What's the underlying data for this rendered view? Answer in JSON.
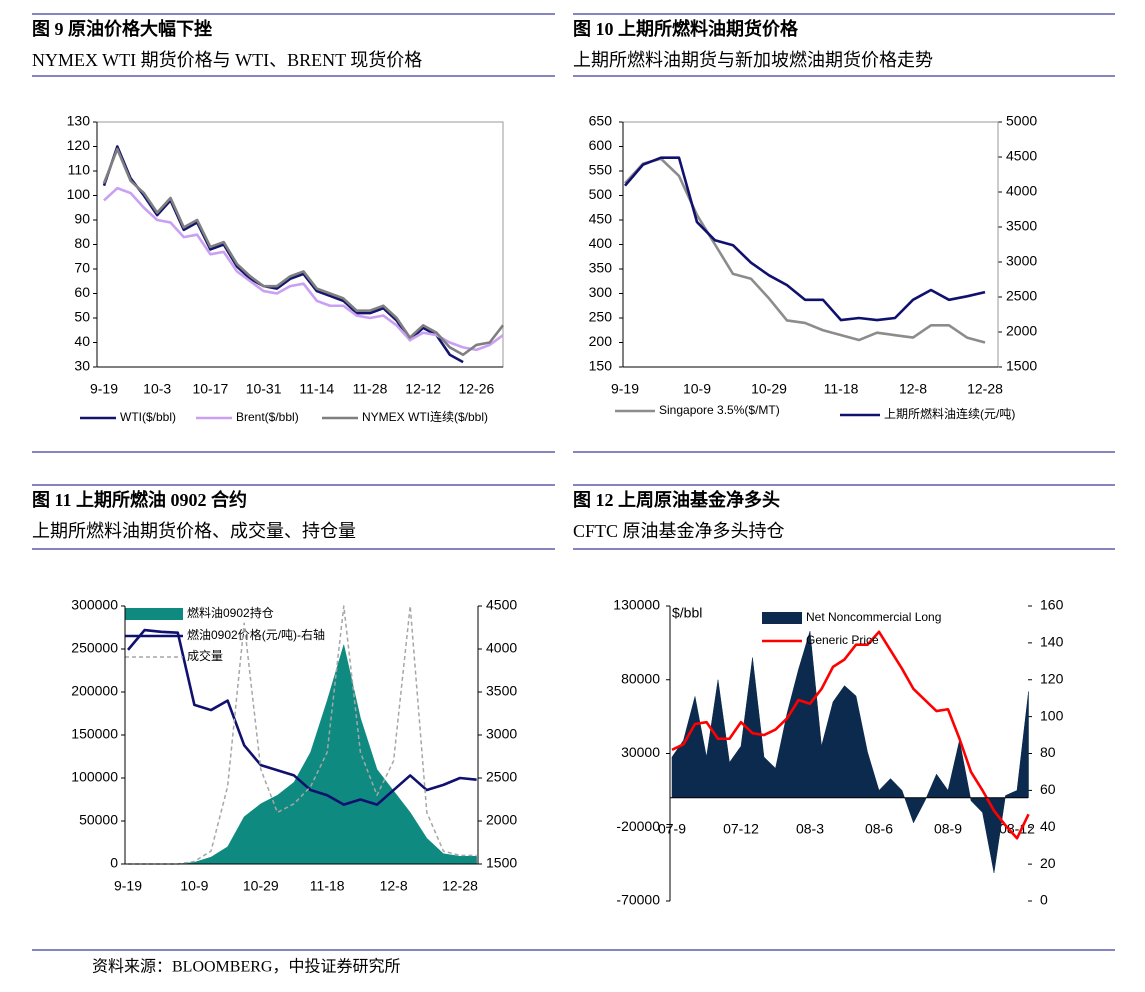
{
  "chart_data": [
    {
      "type": "line",
      "title": "图 9 原油价格大幅下挫",
      "subtitle": "NYMEX WTI 期货价格与 WTI、BRENT 现货价格",
      "categories": [
        "9-19",
        null,
        null,
        null,
        "10-3",
        null,
        null,
        null,
        "10-17",
        null,
        null,
        null,
        "10-31",
        null,
        null,
        null,
        "11-14",
        null,
        null,
        null,
        "11-28",
        null,
        null,
        null,
        "12-12",
        null,
        null,
        null,
        "12-26",
        null,
        null
      ],
      "ylim": [
        30,
        130
      ],
      "yticks": [
        30,
        40,
        50,
        60,
        70,
        80,
        90,
        100,
        110,
        120,
        130
      ],
      "series": [
        {
          "name": "WTI($/bbl)",
          "color": "#14146e",
          "values": [
            104,
            120,
            107,
            100,
            92,
            98,
            86,
            89,
            78,
            80,
            71,
            66,
            63,
            62,
            66,
            68,
            61,
            59,
            57,
            52,
            52,
            54,
            49,
            41,
            46,
            43,
            35,
            32,
            null,
            null,
            null
          ]
        },
        {
          "name": "Brent($/bbl)",
          "color": "#c9a0f2",
          "values": [
            98,
            103,
            101,
            95,
            90,
            89,
            83,
            84,
            76,
            77,
            69,
            65,
            61,
            60,
            63,
            64,
            57,
            55,
            55,
            51,
            50,
            51,
            47,
            41,
            44,
            43,
            40,
            38,
            37,
            39,
            43
          ]
        },
        {
          "name": "NYMEX WTI连续($/bbl)",
          "color": "#7f7f7f",
          "values": [
            105,
            119,
            106,
            101,
            93,
            99,
            87,
            90,
            79,
            81,
            72,
            67,
            63,
            63,
            67,
            69,
            62,
            60,
            58,
            53,
            53,
            55,
            50,
            42,
            47,
            44,
            38,
            35,
            39,
            40,
            47
          ]
        }
      ]
    },
    {
      "type": "line",
      "title": "图 10 上期所燃料油期货价格",
      "subtitle": "上期所燃料油期货与新加坡燃油期货价格走势",
      "categories": [
        "9-19",
        null,
        null,
        null,
        "10-9",
        null,
        null,
        null,
        "10-29",
        null,
        null,
        null,
        "11-18",
        null,
        null,
        null,
        "12-8",
        null,
        null,
        null,
        "12-28"
      ],
      "ylim": [
        150,
        650
      ],
      "yticks": [
        150,
        200,
        250,
        300,
        350,
        400,
        450,
        500,
        550,
        600,
        650
      ],
      "y2lim": [
        1500,
        5000
      ],
      "y2ticks": [
        1500,
        2000,
        2500,
        3000,
        3500,
        4000,
        4500,
        5000
      ],
      "series": [
        {
          "name": "Singapore 3.5%($/MT)",
          "color": "#8c8c8c",
          "values": [
            525,
            565,
            575,
            540,
            460,
            400,
            340,
            330,
            290,
            245,
            240,
            225,
            215,
            205,
            220,
            215,
            210,
            235,
            235,
            210,
            200
          ]
        },
        {
          "name": "上期所燃料油连续(元/吨)",
          "color": "#10106e",
          "axis": "y2",
          "values": [
            4090,
            4390,
            4490,
            4490,
            3570,
            3310,
            3240,
            2990,
            2810,
            2670,
            2460,
            2460,
            2170,
            2200,
            2170,
            2200,
            2460,
            2600,
            2460,
            2510,
            2570
          ]
        }
      ]
    },
    {
      "type": "combo",
      "title": "图 11 上期所燃油 0902 合约",
      "subtitle": "上期所燃料油期货价格、成交量、持仓量",
      "categories": [
        "9-19",
        null,
        null,
        null,
        "10-9",
        null,
        null,
        null,
        "10-29",
        null,
        null,
        null,
        "11-18",
        null,
        null,
        null,
        "12-8",
        null,
        null,
        null,
        "12-28",
        null
      ],
      "ylim": [
        0,
        300000
      ],
      "yticks": [
        0,
        50000,
        100000,
        150000,
        200000,
        250000,
        300000
      ],
      "y2lim": [
        1500,
        4500
      ],
      "y2ticks": [
        1500,
        2000,
        2500,
        3000,
        3500,
        4000,
        4500
      ],
      "series": [
        {
          "name": "燃料油0902持仓",
          "color": "#0f8a80",
          "type": "area",
          "values": [
            0,
            0,
            0,
            0,
            2000,
            8000,
            20000,
            55000,
            70000,
            80000,
            95000,
            130000,
            190000,
            255000,
            170000,
            110000,
            85000,
            60000,
            30000,
            12000,
            9000,
            9000
          ]
        },
        {
          "name": "燃油0902价格(元/吨)-右轴",
          "color": "#10106e",
          "type": "line",
          "axis": "y2",
          "values": [
            3990,
            4220,
            4200,
            4190,
            3350,
            3290,
            3400,
            2880,
            2650,
            2590,
            2530,
            2360,
            2300,
            2190,
            2250,
            2190,
            2360,
            2530,
            2360,
            2420,
            2500,
            2480
          ]
        },
        {
          "name": "成交量",
          "color": "#a6a6a6",
          "type": "line",
          "line_style": "dashed",
          "values": [
            0,
            0,
            0,
            0,
            3000,
            15000,
            90000,
            280000,
            110000,
            60000,
            70000,
            90000,
            130000,
            300000,
            130000,
            80000,
            120000,
            300000,
            60000,
            15000,
            10000,
            10000
          ]
        }
      ]
    },
    {
      "type": "combo",
      "title": "图 12 上周原油基金净多头",
      "subtitle": "CFTC 原油基金净多头持仓",
      "ylabel": "$/bbl",
      "categories": [
        "07-9",
        null,
        null,
        null,
        null,
        null,
        "07-12",
        null,
        null,
        null,
        null,
        null,
        "08-3",
        null,
        null,
        null,
        null,
        null,
        "08-6",
        null,
        null,
        null,
        null,
        null,
        "08-9",
        null,
        null,
        null,
        null,
        null,
        "08-12",
        null
      ],
      "ylim": [
        -70000,
        130000
      ],
      "yticks": [
        -70000,
        -20000,
        30000,
        80000,
        130000
      ],
      "y2lim": [
        0,
        160
      ],
      "y2ticks": [
        0,
        20,
        40,
        60,
        80,
        100,
        120,
        140,
        160
      ],
      "series": [
        {
          "name": "Net Noncommercial Long",
          "color": "#0c2a4e",
          "type": "area",
          "values": [
            27600,
            39000,
            68700,
            27600,
            80000,
            24000,
            35000,
            95000,
            27600,
            20000,
            57000,
            87000,
            113000,
            35000,
            65000,
            76000,
            69000,
            31000,
            5000,
            13000,
            5000,
            -17000,
            -2000,
            16000,
            5000,
            39000,
            -2000,
            -10000,
            -51000,
            1500,
            5000,
            72000
          ]
        },
        {
          "name": "Generic Price",
          "color": "#ff0000",
          "type": "line",
          "axis": "y2",
          "values": [
            82,
            85,
            96,
            97,
            88,
            88,
            97,
            91,
            90,
            93,
            99,
            109,
            107,
            115,
            127,
            131,
            139,
            139,
            146,
            136,
            126,
            115,
            109,
            103,
            104,
            88,
            70,
            60,
            49,
            41,
            34,
            47
          ]
        }
      ]
    }
  ],
  "source": "资料来源：BLOOMBERG，中投证券研究所"
}
